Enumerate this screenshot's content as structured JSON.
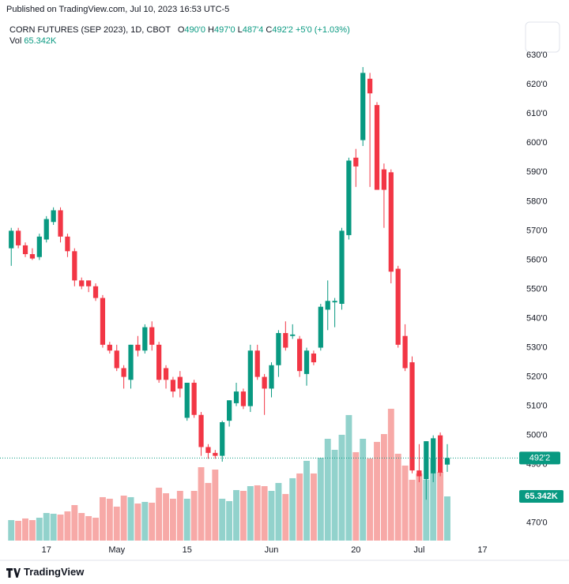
{
  "published": "Published on TradingView.com, Jul 10, 2023 16:53 UTC-5",
  "logo": "TradingView",
  "chart_data": {
    "type": "candlestick",
    "title": "CORN FUTURES (SEP 2023), 1D, CBOT",
    "ohlc_legend": [
      {
        "key": "O",
        "value": "490'0"
      },
      {
        "key": "H",
        "value": "497'0"
      },
      {
        "key": "L",
        "value": "487'4"
      },
      {
        "key": "C",
        "value": "492'2"
      }
    ],
    "change": "+5'0 (+1.03%)",
    "vol_label": "Vol",
    "vol_value": "65.342K",
    "last_price_label": "492'2",
    "up_color": "#089981",
    "down_color": "#f23645",
    "volume_up_color": "#92d2cc",
    "volume_down_color": "#f7a9a7",
    "open": [
      564,
      570,
      565,
      562,
      561,
      567,
      573,
      577,
      568,
      563,
      553,
      553,
      551,
      547,
      531,
      529,
      523,
      519,
      531,
      529,
      537,
      531,
      523,
      519,
      520,
      506,
      518,
      507,
      496,
      494,
      493,
      505,
      511,
      515,
      510,
      529,
      520,
      516,
      524,
      535,
      534,
      533,
      521,
      528,
      530,
      543,
      545.5,
      545,
      568.5,
      595,
      601,
      622,
      613,
      591,
      590,
      557,
      534,
      525,
      488,
      485,
      487,
      500,
      490
    ],
    "high": [
      571,
      571,
      566,
      564,
      569,
      575,
      578,
      578,
      569,
      564,
      554,
      553,
      552,
      548,
      532,
      531,
      524,
      531,
      534,
      538,
      539,
      532,
      524,
      520,
      522,
      518,
      519,
      508,
      497,
      495,
      505,
      512,
      518,
      516,
      531,
      531,
      521,
      525,
      536,
      539,
      538,
      534,
      530,
      529,
      545,
      553,
      547,
      571,
      595,
      598,
      626,
      624,
      614,
      593,
      591,
      558,
      538,
      527,
      497,
      498,
      500,
      501,
      497
    ],
    "low": [
      558,
      564,
      561,
      560,
      560,
      566,
      572,
      566,
      561,
      551,
      550,
      549,
      546,
      530,
      528,
      522,
      516,
      516,
      527,
      528,
      529,
      518,
      516,
      513,
      513,
      505,
      506,
      493,
      492,
      492,
      491,
      503,
      510,
      509,
      508,
      519,
      507,
      513,
      520,
      529,
      533,
      520,
      517,
      524,
      529,
      536,
      537,
      543,
      567,
      585,
      599,
      585,
      584,
      571,
      552,
      530,
      522,
      487,
      484,
      478,
      484,
      486,
      487.5
    ],
    "close": [
      570,
      565,
      562,
      560.5,
      568,
      574,
      577,
      568,
      563,
      553,
      551,
      551,
      547,
      531,
      529,
      523,
      520,
      531,
      529,
      537,
      531,
      519,
      519,
      515,
      516,
      518,
      507,
      496,
      494,
      493,
      504.5,
      512,
      515,
      510,
      529,
      520,
      516,
      524,
      535,
      530,
      534.5,
      522,
      529,
      525,
      544,
      546,
      546,
      570,
      594,
      592,
      624,
      617,
      584,
      584,
      556,
      531,
      523,
      488,
      486,
      498,
      499,
      487.25,
      492.25
    ],
    "volume": [
      30300,
      29200,
      32700,
      30300,
      33800,
      40800,
      39700,
      38500,
      43200,
      52500,
      40800,
      36200,
      33800,
      64200,
      61900,
      50200,
      66500,
      64200,
      54800,
      57200,
      56000,
      78200,
      70000,
      61900,
      73500,
      61900,
      73500,
      108500,
      85200,
      105000,
      61900,
      58400,
      74700,
      73500,
      80500,
      81700,
      80500,
      73500,
      85200,
      68900,
      92200,
      99200,
      117900,
      99200,
      122500,
      150500,
      134200,
      156400,
      185600,
      130700,
      150500,
      121400,
      145900,
      157500,
      194900,
      128400,
      110900,
      89900,
      99200,
      89900,
      122500,
      101500,
      65342
    ],
    "volume_lim": [
      0,
      350000
    ],
    "xlim": [
      -1.6,
      72
    ],
    "xticks": [
      {
        "value": 5,
        "label": "17"
      },
      {
        "value": 15,
        "label": "May"
      },
      {
        "value": 25,
        "label": "15"
      },
      {
        "value": 37,
        "label": "Jun"
      },
      {
        "value": 49,
        "label": "20"
      },
      {
        "value": 58,
        "label": "Jul"
      },
      {
        "value": 67,
        "label": "17"
      }
    ],
    "ylim": [
      464,
      643
    ],
    "yticks": [
      {
        "value": 630,
        "label": "630'0"
      },
      {
        "value": 620,
        "label": "620'0"
      },
      {
        "value": 610,
        "label": "610'0"
      },
      {
        "value": 600,
        "label": "600'0"
      },
      {
        "value": 590,
        "label": "590'0"
      },
      {
        "value": 580,
        "label": "580'0"
      },
      {
        "value": 570,
        "label": "570'0"
      },
      {
        "value": 560,
        "label": "560'0"
      },
      {
        "value": 550,
        "label": "550'0"
      },
      {
        "value": 540,
        "label": "540'0"
      },
      {
        "value": 530,
        "label": "530'0"
      },
      {
        "value": 520,
        "label": "520'0"
      },
      {
        "value": 510,
        "label": "510'0"
      },
      {
        "value": 500,
        "label": "500'0"
      },
      {
        "value": 490,
        "label": "490'0"
      },
      {
        "value": 470,
        "label": "470'0"
      }
    ],
    "grid": false
  }
}
